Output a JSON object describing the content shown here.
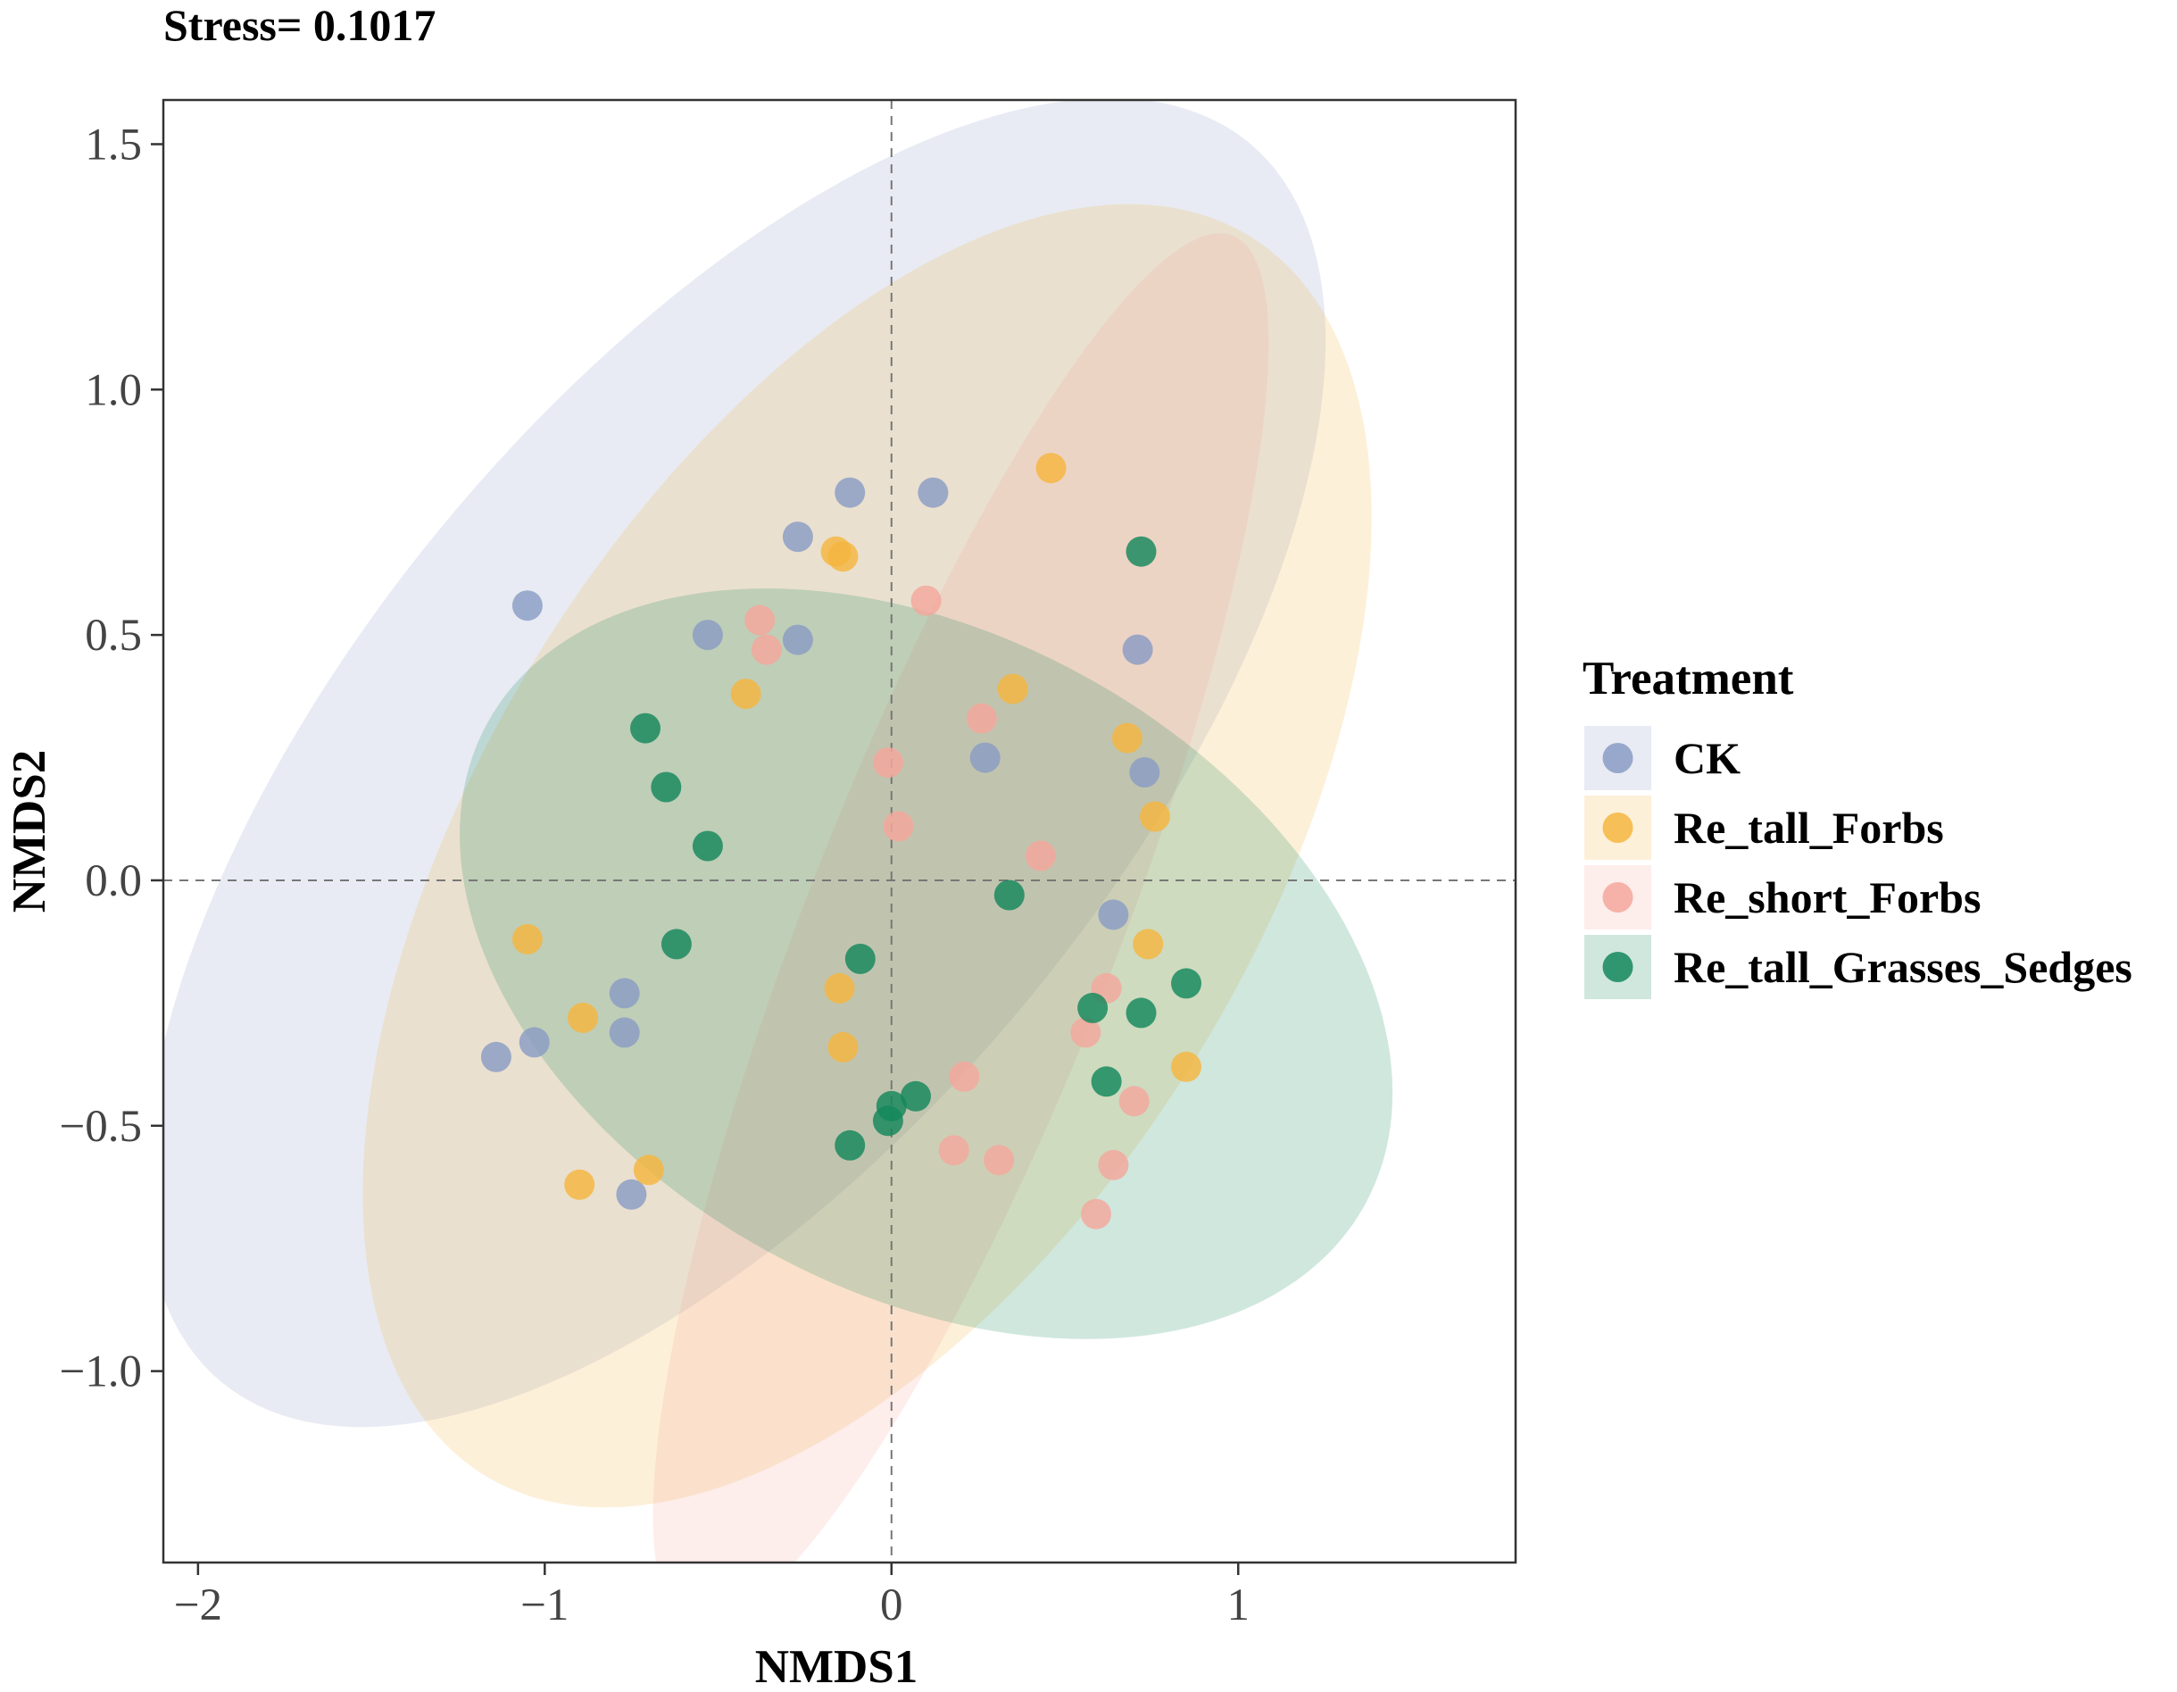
{
  "chart_data": {
    "type": "scatter",
    "title": "",
    "subtitle": "Stress= 0.1017",
    "xlabel": "NMDS1",
    "ylabel": "NMDS2",
    "xlim": [
      -2.1,
      1.8
    ],
    "ylim": [
      -1.39,
      1.59
    ],
    "xticks": [
      -2,
      -1,
      0,
      1
    ],
    "xtick_labels": [
      "−2",
      "−1",
      "0",
      "1"
    ],
    "yticks": [
      -1.0,
      -0.5,
      0.0,
      0.5,
      1.0,
      1.5
    ],
    "ytick_labels": [
      "−1.0",
      "−0.5",
      "0.0",
      "0.5",
      "1.0",
      "1.5"
    ],
    "reference_lines": {
      "x": 0,
      "y": 0
    },
    "grid": false,
    "legend": {
      "title": "Treatment",
      "placement": "right"
    },
    "series": [
      {
        "name": "CK",
        "color": "#8a9cc4",
        "ellipse": {
          "cx": -0.45,
          "cy": 0.24,
          "rx": 1.98,
          "ry": 0.9,
          "angle_deg": 35
        },
        "points": [
          {
            "x": -1.05,
            "y": 0.56
          },
          {
            "x": -0.53,
            "y": 0.5
          },
          {
            "x": -0.27,
            "y": 0.7
          },
          {
            "x": -0.12,
            "y": 0.79
          },
          {
            "x": 0.12,
            "y": 0.79
          },
          {
            "x": -0.27,
            "y": 0.49
          },
          {
            "x": 0.27,
            "y": 0.25
          },
          {
            "x": 0.71,
            "y": 0.47
          },
          {
            "x": 0.73,
            "y": 0.22
          },
          {
            "x": 0.64,
            "y": -0.07
          },
          {
            "x": -0.77,
            "y": -0.23
          },
          {
            "x": -0.77,
            "y": -0.31
          },
          {
            "x": -1.03,
            "y": -0.33
          },
          {
            "x": -1.14,
            "y": -0.36
          },
          {
            "x": -0.75,
            "y": -0.64
          }
        ]
      },
      {
        "name": "Re_tall_Forbs",
        "color": "#f5b640",
        "ellipse": {
          "cx": -0.07,
          "cy": 0.05,
          "rx": 1.72,
          "ry": 0.96,
          "angle_deg": 40
        },
        "points": [
          {
            "x": 0.46,
            "y": 0.84
          },
          {
            "x": -0.16,
            "y": 0.67
          },
          {
            "x": -0.14,
            "y": 0.66
          },
          {
            "x": -0.42,
            "y": 0.38
          },
          {
            "x": 0.35,
            "y": 0.39
          },
          {
            "x": 0.68,
            "y": 0.29
          },
          {
            "x": 0.76,
            "y": 0.13
          },
          {
            "x": -1.05,
            "y": -0.12
          },
          {
            "x": 0.74,
            "y": -0.13
          },
          {
            "x": -0.15,
            "y": -0.22
          },
          {
            "x": -0.89,
            "y": -0.28
          },
          {
            "x": -0.14,
            "y": -0.34
          },
          {
            "x": 0.85,
            "y": -0.38
          },
          {
            "x": -0.7,
            "y": -0.59
          },
          {
            "x": -0.9,
            "y": -0.62
          }
        ]
      },
      {
        "name": "Re_short_Forbs",
        "color": "#f4a79c",
        "ellipse": {
          "cx": 0.2,
          "cy": -0.1,
          "rx": 1.62,
          "ry": 0.42,
          "angle_deg": 60
        },
        "points": [
          {
            "x": 0.1,
            "y": 0.57
          },
          {
            "x": -0.38,
            "y": 0.53
          },
          {
            "x": -0.36,
            "y": 0.47
          },
          {
            "x": 0.26,
            "y": 0.33
          },
          {
            "x": -0.01,
            "y": 0.24
          },
          {
            "x": 0.02,
            "y": 0.11
          },
          {
            "x": 0.43,
            "y": 0.05
          },
          {
            "x": 0.62,
            "y": -0.22
          },
          {
            "x": 0.56,
            "y": -0.31
          },
          {
            "x": 0.21,
            "y": -0.4
          },
          {
            "x": 0.7,
            "y": -0.45
          },
          {
            "x": 0.18,
            "y": -0.55
          },
          {
            "x": 0.31,
            "y": -0.57
          },
          {
            "x": 0.64,
            "y": -0.58
          },
          {
            "x": 0.59,
            "y": -0.68
          }
        ]
      },
      {
        "name": "Re_tall_Grasses_Sedges",
        "color": "#14875c",
        "ellipse": {
          "cx": 0.1,
          "cy": -0.17,
          "rx": 1.38,
          "ry": 0.7,
          "angle_deg": -15
        },
        "points": [
          {
            "x": 0.72,
            "y": 0.67
          },
          {
            "x": -0.71,
            "y": 0.31
          },
          {
            "x": -0.65,
            "y": 0.19
          },
          {
            "x": -0.53,
            "y": 0.07
          },
          {
            "x": 0.34,
            "y": -0.03
          },
          {
            "x": -0.62,
            "y": -0.13
          },
          {
            "x": -0.09,
            "y": -0.16
          },
          {
            "x": 0.85,
            "y": -0.21
          },
          {
            "x": 0.58,
            "y": -0.26
          },
          {
            "x": 0.72,
            "y": -0.27
          },
          {
            "x": 0.62,
            "y": -0.41
          },
          {
            "x": 0.07,
            "y": -0.44
          },
          {
            "x": 0.0,
            "y": -0.46
          },
          {
            "x": -0.01,
            "y": -0.49
          },
          {
            "x": -0.12,
            "y": -0.54
          }
        ]
      }
    ]
  }
}
